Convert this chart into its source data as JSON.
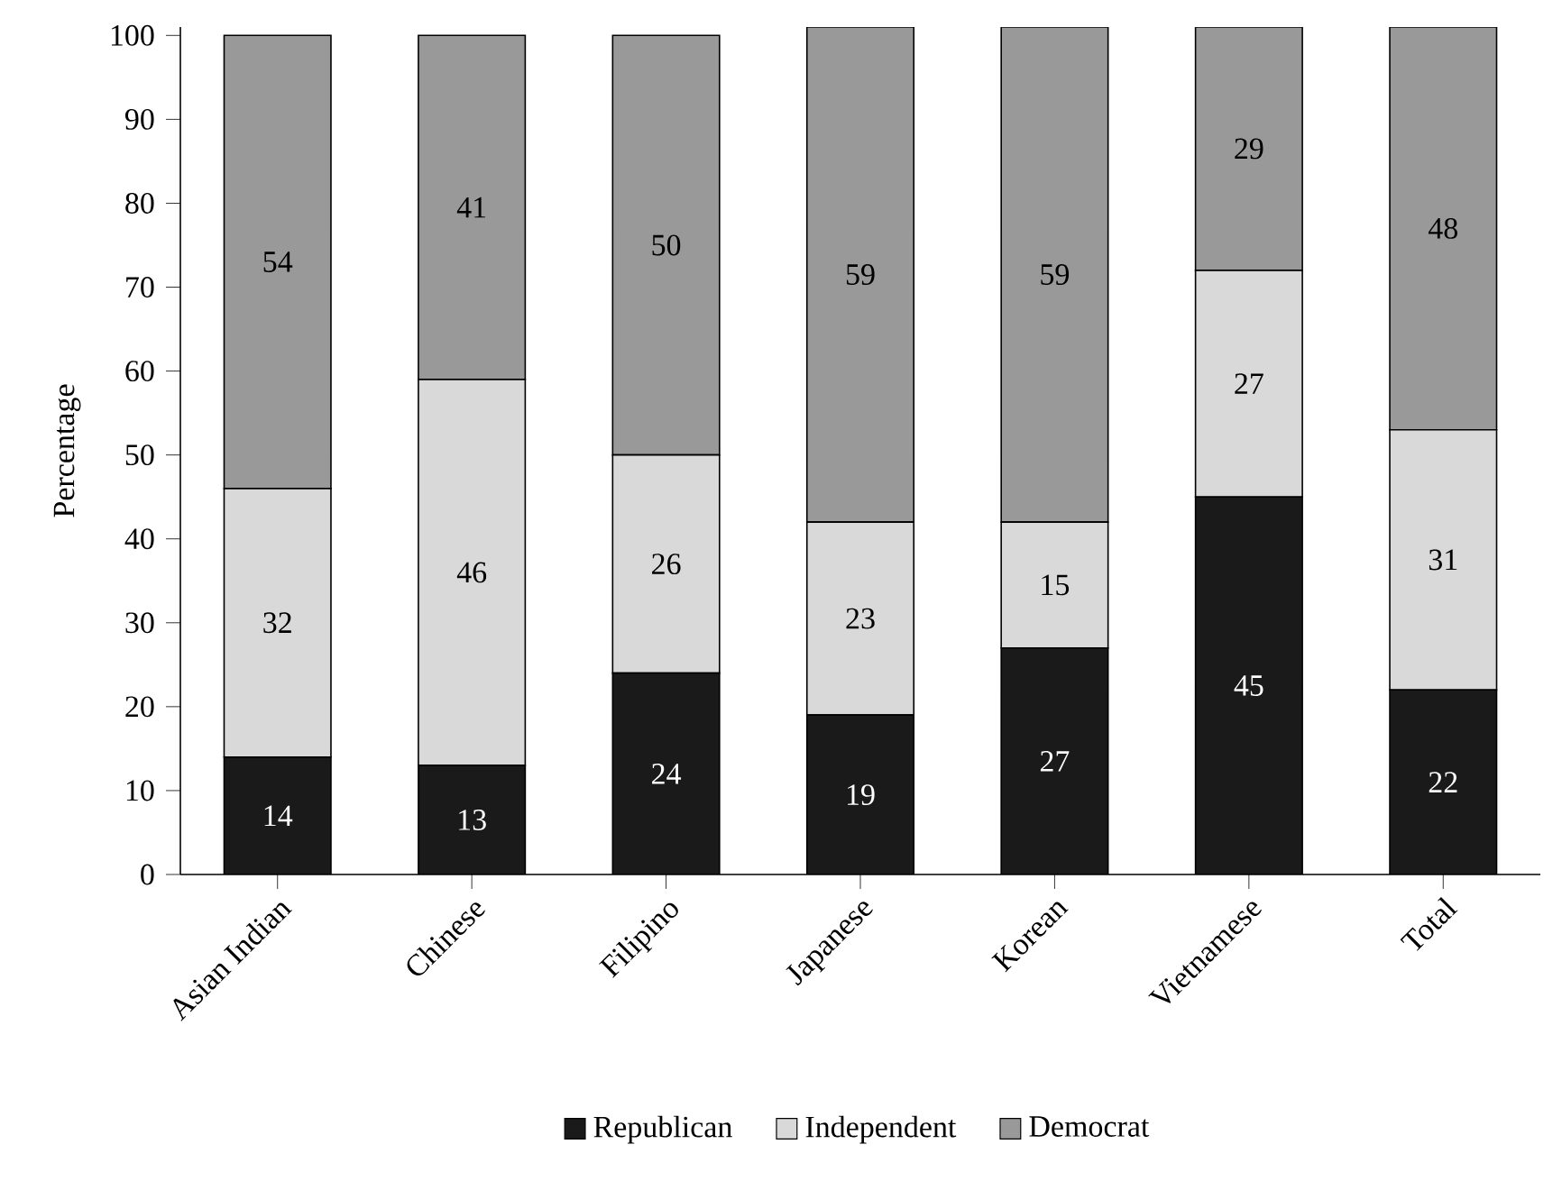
{
  "chart_data": {
    "type": "bar",
    "stacked": true,
    "ylabel": "Percentage",
    "categories": [
      "Asian Indian",
      "Chinese",
      "Filipino",
      "Japanese",
      "Korean",
      "Vietnamese",
      "Total"
    ],
    "series": [
      {
        "name": "Republican",
        "color": "#1a1a1a",
        "values": [
          14,
          13,
          24,
          19,
          27,
          45,
          22
        ],
        "value_labels": [
          "14",
          "13",
          "24",
          "19",
          "27",
          "45",
          "22"
        ]
      },
      {
        "name": "Independent",
        "color": "#d9d9d9",
        "values": [
          32,
          46,
          26,
          23,
          15,
          27,
          31
        ],
        "value_labels": [
          "32",
          "46",
          "26",
          "23",
          "15",
          "27",
          "31"
        ]
      },
      {
        "name": "Democrat",
        "color": "#999999",
        "values": [
          54,
          41,
          50,
          59,
          59,
          29,
          48
        ],
        "value_labels": [
          "54",
          "41",
          "50",
          "59",
          "59",
          "29",
          "48"
        ]
      }
    ],
    "ylim": [
      0,
      101
    ],
    "yticks": [
      0,
      10,
      20,
      30,
      40,
      50,
      60,
      70,
      80,
      90,
      100
    ],
    "legend": "bottom"
  }
}
